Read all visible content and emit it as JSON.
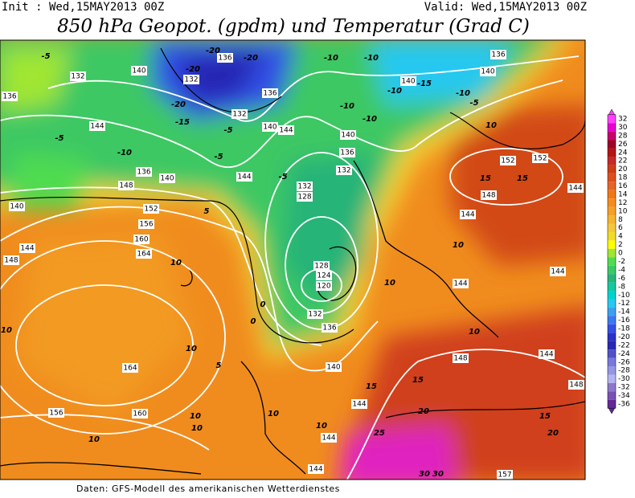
{
  "header": {
    "init": "Init : Wed,15MAY2013 00Z",
    "valid": "Valid: Wed,15MAY2013 00Z",
    "title": "850 hPa Geopot. (gpdm) und Temperatur (Grad C)"
  },
  "colorbar": {
    "labels": [
      32,
      30,
      28,
      26,
      24,
      22,
      20,
      18,
      16,
      14,
      12,
      10,
      8,
      6,
      4,
      2,
      0,
      -2,
      -4,
      -6,
      -8,
      -10,
      -12,
      -14,
      -16,
      -18,
      -20,
      -22,
      -24,
      -26,
      -28,
      -30,
      -32,
      -34,
      -36
    ],
    "colors": [
      "#ff40ff",
      "#e600d2",
      "#c8006e",
      "#a00028",
      "#b41414",
      "#c82828",
      "#d03c14",
      "#dc501e",
      "#e66428",
      "#f07814",
      "#f58c1e",
      "#f5a028",
      "#f5b432",
      "#f5c83c",
      "#f0dc28",
      "#ffff00",
      "#a0e632",
      "#50dc50",
      "#3cc864",
      "#28b478",
      "#14c8a0",
      "#00d2d2",
      "#28c8f0",
      "#3ca0f0",
      "#3c78f0",
      "#3250e6",
      "#2832c8",
      "#2828b4",
      "#5050c8",
      "#7878dc",
      "#9696e6",
      "#b4b4f0",
      "#8c78c8",
      "#7850b4",
      "#642896"
    ]
  },
  "map_labels": {
    "geopotential": [
      "132",
      "136",
      "140",
      "136",
      "132",
      "132",
      "136",
      "140",
      "144",
      "144",
      "136",
      "140",
      "144",
      "148",
      "140",
      "152",
      "156",
      "160",
      "164",
      "144",
      "148",
      "164",
      "160",
      "156",
      "132",
      "128",
      "136",
      "132",
      "140",
      "128",
      "124",
      "120",
      "132",
      "136",
      "140",
      "144",
      "144",
      "144",
      "148",
      "144",
      "144",
      "148",
      "152",
      "152",
      "144",
      "144",
      "144",
      "148",
      "140",
      "136",
      "140",
      "157"
    ],
    "temperature": [
      "-5",
      "-20",
      "-20",
      "-20",
      "-20",
      "-15",
      "-5",
      "-10",
      "-5",
      "-10",
      "-10",
      "-15",
      "-10",
      "-10",
      "-5",
      "-10",
      "-10",
      "-5",
      "0",
      "0",
      "5",
      "10",
      "10",
      "5",
      "10",
      "10",
      "10",
      "10",
      "10",
      "10",
      "10",
      "10",
      "10",
      "15",
      "15",
      "15",
      "20",
      "20",
      "15",
      "15",
      "25",
      "30",
      "30",
      "10",
      "-5"
    ]
  },
  "footer": "Daten: GFS-Modell des amerikanischen Wetterdienstes"
}
